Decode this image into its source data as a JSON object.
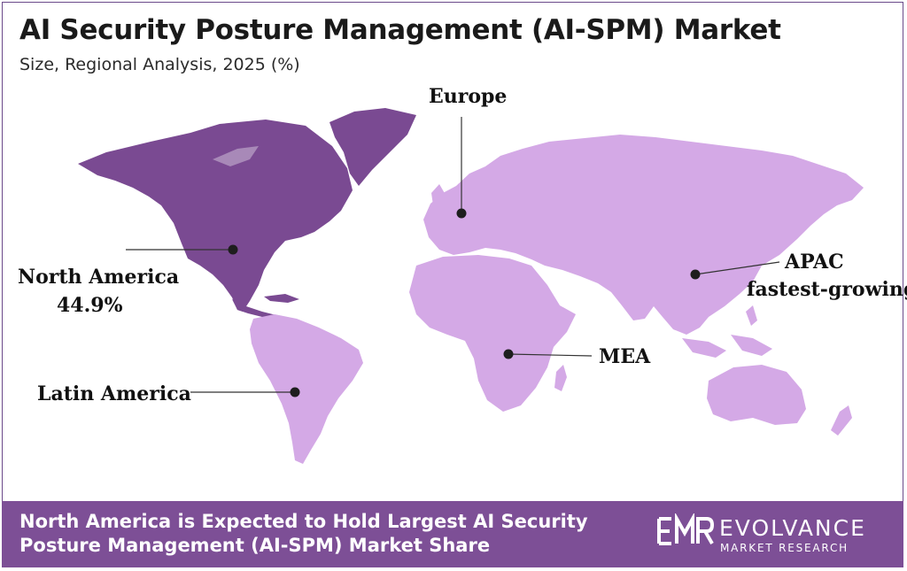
{
  "header": {
    "title": "AI Security Posture Management (AI-SPM) Market",
    "subtitle": "Size, Regional Analysis, 2025 (%)"
  },
  "map": {
    "colors": {
      "north_america": "#7a4a92",
      "other_regions": "#d4a9e6",
      "marker": "#1e1e1e"
    },
    "regions": {
      "europe": {
        "name": "Europe"
      },
      "north_america": {
        "name": "North America",
        "share": "44.9%"
      },
      "apac": {
        "name": "APAC",
        "note": "fastest-growing"
      },
      "mea": {
        "name": "MEA"
      },
      "latin_america": {
        "name": "Latin America"
      }
    }
  },
  "footer": {
    "headline": "North America is Expected to Hold Largest AI Security Posture Management (AI-SPM) Market Share",
    "brand_name": "EVOLVANCE",
    "brand_tagline": "MARKET RESEARCH",
    "background": "#7d4f96"
  }
}
